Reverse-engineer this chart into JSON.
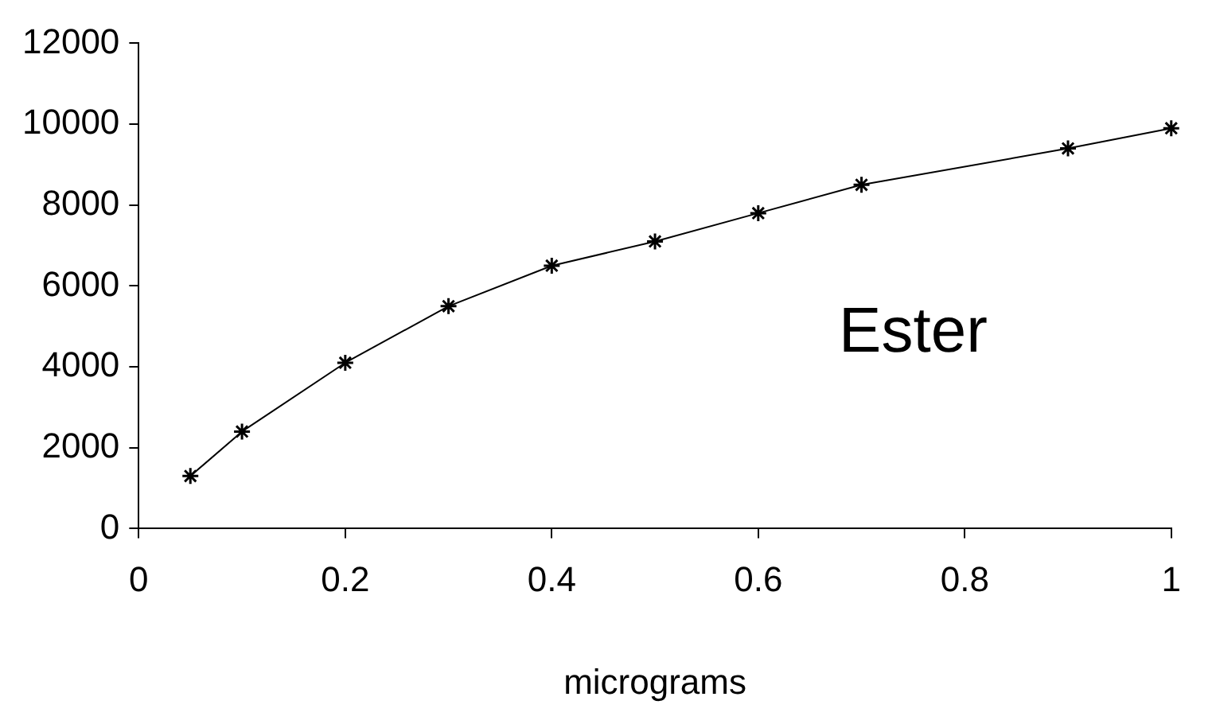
{
  "chart_data": {
    "type": "line",
    "xlabel": "micrograms",
    "annotations": [
      "Ester"
    ],
    "marker": "cross",
    "line_style": "solid",
    "grid": false,
    "legend": false,
    "x": [
      0.05,
      0.1,
      0.2,
      0.3,
      0.4,
      0.5,
      0.6,
      0.7,
      0.9,
      1.0
    ],
    "series": [
      {
        "color": "#000000",
        "values": [
          1300,
          2400,
          4100,
          5500,
          6500,
          7100,
          7800,
          8500,
          9400,
          9900
        ]
      }
    ],
    "xlim": [
      0,
      1
    ],
    "xticks": [
      0,
      0.2,
      0.4,
      0.6,
      0.8,
      1
    ],
    "ylim": [
      0,
      12000
    ],
    "yticks": [
      0,
      2000,
      4000,
      6000,
      8000,
      10000,
      12000
    ]
  }
}
